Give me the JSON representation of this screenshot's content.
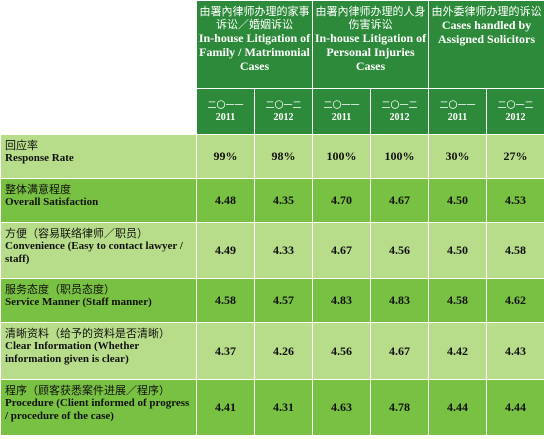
{
  "headers": [
    {
      "zh": "由署內律师办理的家事诉讼／婚姻诉讼",
      "en": "In-house Litigation of Family / Matrimonial Cases"
    },
    {
      "zh": "由署內律师办理的人身伤害诉讼",
      "en": "In-house Litigation of Personal Injuries Cases"
    },
    {
      "zh": "由外委律师办理的诉讼",
      "en": "Cases handled by Assigned Solicitors"
    }
  ],
  "years": [
    {
      "zh": "二〇一一",
      "num": "2011"
    },
    {
      "zh": "二〇一二",
      "num": "2012"
    },
    {
      "zh": "二〇一一",
      "num": "2011"
    },
    {
      "zh": "二〇一二",
      "num": "2012"
    },
    {
      "zh": "二〇一一",
      "num": "2011"
    },
    {
      "zh": "二〇一二",
      "num": "2012"
    }
  ],
  "rows": [
    {
      "zh": "回应率",
      "en": "Response Rate",
      "values": [
        "99%",
        "98%",
        "100%",
        "100%",
        "30%",
        "27%"
      ]
    },
    {
      "zh": "整体满意程度",
      "en": "Overall Satisfaction",
      "values": [
        "4.48",
        "4.35",
        "4.70",
        "4.67",
        "4.50",
        "4.53"
      ]
    },
    {
      "zh": "方便（容易联络律师／职员）",
      "en": "Convenience (Easy to contact lawyer / staff)",
      "values": [
        "4.49",
        "4.33",
        "4.67",
        "4.56",
        "4.50",
        "4.58"
      ]
    },
    {
      "zh": "服务态度（职员态度）",
      "en": "Service Manner (Staff manner)",
      "values": [
        "4.58",
        "4.57",
        "4.83",
        "4.83",
        "4.58",
        "4.62"
      ]
    },
    {
      "zh": "清晰资料（给予的资料是否清晰）",
      "en": "Clear Information (Whether information given is clear)",
      "values": [
        "4.37",
        "4.26",
        "4.56",
        "4.67",
        "4.42",
        "4.43"
      ]
    },
    {
      "zh": "程序（顾客获悉案件进展／程序）",
      "en": "Procedure (Client informed of progress / procedure of the case)",
      "values": [
        "4.41",
        "4.31",
        "4.63",
        "4.78",
        "4.44",
        "4.44"
      ]
    }
  ]
}
